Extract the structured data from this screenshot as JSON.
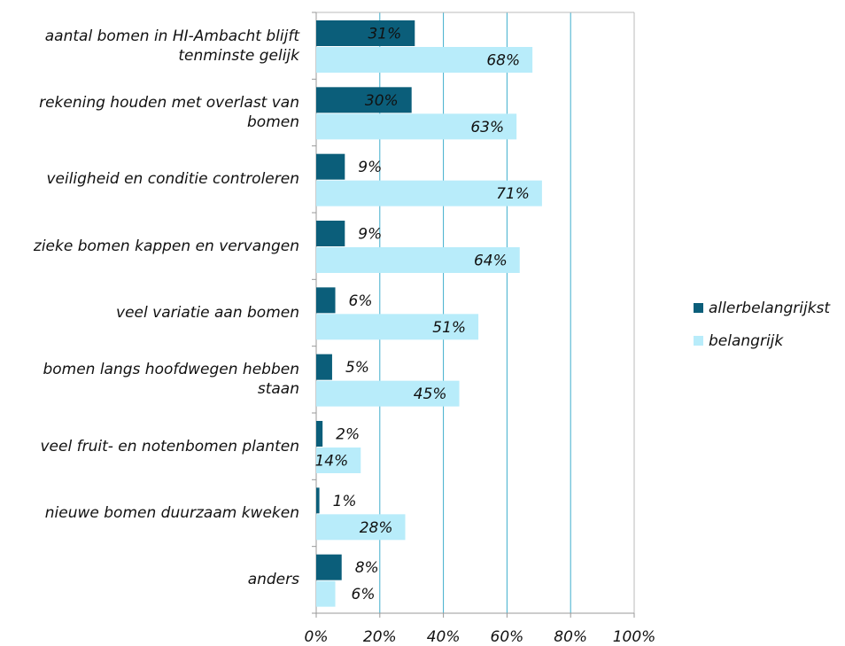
{
  "chart_data": {
    "type": "bar",
    "orientation": "horizontal",
    "categories": [
      "aantal bomen in HI-Ambacht blijft tenminste gelijk",
      "rekening houden met overlast van bomen",
      "veiligheid en conditie controleren",
      "zieke bomen kappen en vervangen",
      "veel variatie aan bomen",
      "bomen langs hoofdwegen hebben staan",
      "veel fruit- en notenbomen planten",
      "nieuwe bomen duurzaam kweken",
      "anders"
    ],
    "series": [
      {
        "name": "allerbelangrijkst",
        "color": "#0b5e7a",
        "values": [
          31,
          30,
          9,
          9,
          6,
          5,
          2,
          1,
          8
        ],
        "value_labels": [
          "31%",
          "30%",
          "9%",
          "9%",
          "6%",
          "5%",
          "2%",
          "1%",
          "8%"
        ]
      },
      {
        "name": "belangrijk",
        "color": "#b8ecfa",
        "values": [
          68,
          63,
          71,
          64,
          51,
          45,
          14,
          28,
          6
        ],
        "value_labels": [
          "68%",
          "63%",
          "71%",
          "64%",
          "51%",
          "45%",
          "14%",
          "28%",
          "6%"
        ]
      }
    ],
    "xlim": [
      0,
      100
    ],
    "xticks": [
      {
        "value": 0,
        "label": "0%"
      },
      {
        "value": 20,
        "label": "20%"
      },
      {
        "value": 40,
        "label": "40%"
      },
      {
        "value": 60,
        "label": "60%"
      },
      {
        "value": 80,
        "label": "80%"
      },
      {
        "value": 100,
        "label": "100%"
      }
    ],
    "grid": true,
    "legend": "right"
  }
}
